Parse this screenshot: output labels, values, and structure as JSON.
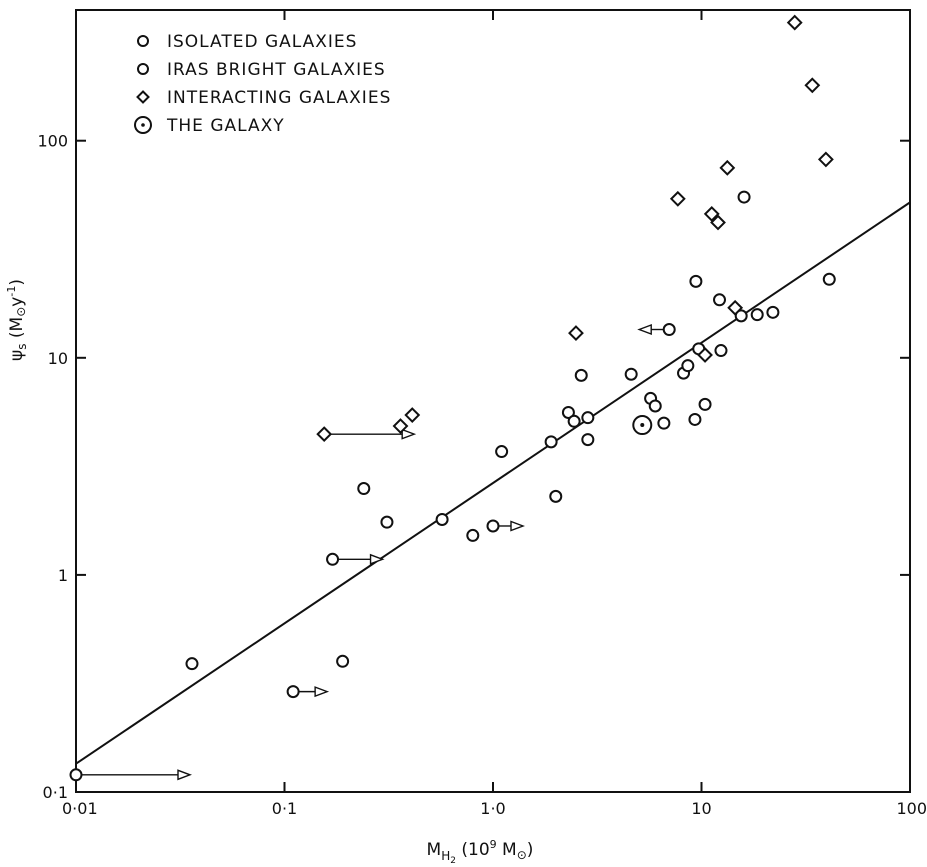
{
  "chart_data": {
    "type": "scatter",
    "xscale": "log",
    "yscale": "log",
    "xlim": [
      0.01,
      100
    ],
    "ylim": [
      0.1,
      400
    ],
    "x_ticks": [
      {
        "value": 0.01,
        "label": "0·01"
      },
      {
        "value": 0.1,
        "label": "0·1"
      },
      {
        "value": 1,
        "label": "1·0"
      },
      {
        "value": 10,
        "label": "10"
      },
      {
        "value": 100,
        "label": "100"
      }
    ],
    "y_ticks": [
      {
        "value": 0.1,
        "label": "0·1"
      },
      {
        "value": 1,
        "label": "1"
      },
      {
        "value": 10,
        "label": "10"
      },
      {
        "value": 100,
        "label": "100"
      }
    ],
    "xlabel": {
      "main": "M",
      "sub": "H",
      "subsub": "2",
      "unit_open": " (10",
      "unit_exp": "9",
      "unit_mid": " M",
      "unit_sun": "⊙",
      "unit_close": ")"
    },
    "ylabel": {
      "main": "ψ",
      "sub": "s",
      "unit_open": " (M",
      "unit_sun": "⊙",
      "unit_mid": "y",
      "unit_exp": "-1",
      "unit_close": ")"
    },
    "legend": {
      "placement": "top-left",
      "entries": [
        {
          "symbol": "circle-bold",
          "label": "ISOLATED GALAXIES"
        },
        {
          "symbol": "circle-thin",
          "label": "IRAS BRIGHT GALAXIES"
        },
        {
          "symbol": "diamond",
          "label": "INTERACTING GALAXIES"
        },
        {
          "symbol": "circle-dot",
          "label": "THE GALAXY"
        }
      ]
    },
    "fit_line": {
      "x": [
        0.01,
        100
      ],
      "y": [
        0.135,
        52
      ]
    },
    "series": [
      {
        "symbol": "circle",
        "points": [
          {
            "x": 0.01,
            "y": 0.12,
            "upper_limit_arrow": true
          },
          {
            "x": 0.036,
            "y": 0.39
          },
          {
            "x": 0.11,
            "y": 0.29,
            "upper_limit_arrow": true
          },
          {
            "x": 0.19,
            "y": 0.4
          },
          {
            "x": 0.17,
            "y": 1.18,
            "upper_limit_arrow": true
          },
          {
            "x": 0.24,
            "y": 2.5
          },
          {
            "x": 0.31,
            "y": 1.75
          },
          {
            "x": 0.57,
            "y": 1.8
          },
          {
            "x": 0.8,
            "y": 1.52
          },
          {
            "x": 1.0,
            "y": 1.68,
            "upper_limit_arrow": true
          },
          {
            "x": 1.1,
            "y": 3.7
          },
          {
            "x": 1.9,
            "y": 4.1
          },
          {
            "x": 2.0,
            "y": 2.3
          },
          {
            "x": 2.3,
            "y": 5.6
          },
          {
            "x": 2.45,
            "y": 5.1
          },
          {
            "x": 2.65,
            "y": 8.3
          },
          {
            "x": 2.85,
            "y": 5.3
          },
          {
            "x": 2.85,
            "y": 4.2
          },
          {
            "x": 4.6,
            "y": 8.4
          },
          {
            "x": 5.7,
            "y": 6.5
          },
          {
            "x": 6.0,
            "y": 6.0
          },
          {
            "x": 6.6,
            "y": 5.0
          },
          {
            "x": 7.0,
            "y": 13.5,
            "lower_limit_arrow": true
          },
          {
            "x": 8.2,
            "y": 8.5
          },
          {
            "x": 8.6,
            "y": 9.2
          },
          {
            "x": 9.3,
            "y": 5.2
          },
          {
            "x": 9.4,
            "y": 22.5
          },
          {
            "x": 9.7,
            "y": 11.0
          },
          {
            "x": 10.4,
            "y": 6.1
          },
          {
            "x": 12.2,
            "y": 18.5
          },
          {
            "x": 12.4,
            "y": 10.8
          },
          {
            "x": 15.5,
            "y": 15.6
          },
          {
            "x": 16.0,
            "y": 55.0
          },
          {
            "x": 18.5,
            "y": 15.8
          },
          {
            "x": 22.0,
            "y": 16.2
          },
          {
            "x": 41.0,
            "y": 23.0
          }
        ]
      },
      {
        "symbol": "diamond",
        "points": [
          {
            "x": 0.155,
            "y": 4.45,
            "upper_limit_arrow": true
          },
          {
            "x": 0.36,
            "y": 4.85
          },
          {
            "x": 0.41,
            "y": 5.45
          },
          {
            "x": 2.5,
            "y": 13.0
          },
          {
            "x": 7.7,
            "y": 54.0
          },
          {
            "x": 10.4,
            "y": 10.3
          },
          {
            "x": 11.2,
            "y": 46.0
          },
          {
            "x": 12.0,
            "y": 42.0
          },
          {
            "x": 13.3,
            "y": 75.0
          },
          {
            "x": 14.5,
            "y": 17.0
          },
          {
            "x": 28.0,
            "y": 350.0
          },
          {
            "x": 34.0,
            "y": 180.0
          },
          {
            "x": 39.5,
            "y": 82.0
          }
        ]
      },
      {
        "symbol": "circle-dot",
        "points": [
          {
            "x": 5.2,
            "y": 4.9
          }
        ]
      }
    ]
  }
}
